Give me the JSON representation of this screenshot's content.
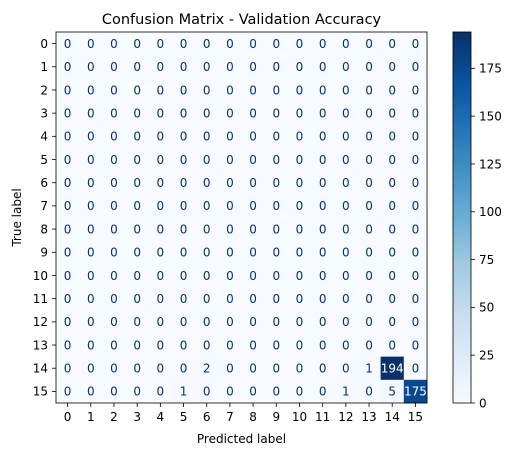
{
  "chart_data": {
    "type": "heatmap",
    "title": "Confusion Matrix - Validation Accuracy",
    "xlabel": "Predicted label",
    "ylabel": "True label",
    "x_ticks": [
      "0",
      "1",
      "2",
      "3",
      "4",
      "5",
      "6",
      "7",
      "8",
      "9",
      "10",
      "11",
      "12",
      "13",
      "14",
      "15"
    ],
    "y_ticks": [
      "0",
      "1",
      "2",
      "3",
      "4",
      "5",
      "6",
      "7",
      "8",
      "9",
      "10",
      "11",
      "12",
      "13",
      "14",
      "15"
    ],
    "matrix": [
      [
        0,
        0,
        0,
        0,
        0,
        0,
        0,
        0,
        0,
        0,
        0,
        0,
        0,
        0,
        0,
        0
      ],
      [
        0,
        0,
        0,
        0,
        0,
        0,
        0,
        0,
        0,
        0,
        0,
        0,
        0,
        0,
        0,
        0
      ],
      [
        0,
        0,
        0,
        0,
        0,
        0,
        0,
        0,
        0,
        0,
        0,
        0,
        0,
        0,
        0,
        0
      ],
      [
        0,
        0,
        0,
        0,
        0,
        0,
        0,
        0,
        0,
        0,
        0,
        0,
        0,
        0,
        0,
        0
      ],
      [
        0,
        0,
        0,
        0,
        0,
        0,
        0,
        0,
        0,
        0,
        0,
        0,
        0,
        0,
        0,
        0
      ],
      [
        0,
        0,
        0,
        0,
        0,
        0,
        0,
        0,
        0,
        0,
        0,
        0,
        0,
        0,
        0,
        0
      ],
      [
        0,
        0,
        0,
        0,
        0,
        0,
        0,
        0,
        0,
        0,
        0,
        0,
        0,
        0,
        0,
        0
      ],
      [
        0,
        0,
        0,
        0,
        0,
        0,
        0,
        0,
        0,
        0,
        0,
        0,
        0,
        0,
        0,
        0
      ],
      [
        0,
        0,
        0,
        0,
        0,
        0,
        0,
        0,
        0,
        0,
        0,
        0,
        0,
        0,
        0,
        0
      ],
      [
        0,
        0,
        0,
        0,
        0,
        0,
        0,
        0,
        0,
        0,
        0,
        0,
        0,
        0,
        0,
        0
      ],
      [
        0,
        0,
        0,
        0,
        0,
        0,
        0,
        0,
        0,
        0,
        0,
        0,
        0,
        0,
        0,
        0
      ],
      [
        0,
        0,
        0,
        0,
        0,
        0,
        0,
        0,
        0,
        0,
        0,
        0,
        0,
        0,
        0,
        0
      ],
      [
        0,
        0,
        0,
        0,
        0,
        0,
        0,
        0,
        0,
        0,
        0,
        0,
        0,
        0,
        0,
        0
      ],
      [
        0,
        0,
        0,
        0,
        0,
        0,
        0,
        0,
        0,
        0,
        0,
        0,
        0,
        0,
        0,
        0
      ],
      [
        0,
        0,
        0,
        0,
        0,
        0,
        2,
        0,
        0,
        0,
        0,
        0,
        0,
        1,
        194,
        0
      ],
      [
        0,
        0,
        0,
        0,
        0,
        1,
        0,
        0,
        0,
        0,
        0,
        0,
        1,
        0,
        5,
        175
      ]
    ],
    "colormap": "Blues",
    "color_range": [
      0,
      194
    ],
    "colorbar_ticks": [
      0,
      25,
      50,
      75,
      100,
      125,
      150,
      175
    ],
    "colors": {
      "low": "#f7fbff",
      "high": "#08306b",
      "text_dark": "#08306b",
      "text_light": "#ffffff"
    }
  }
}
